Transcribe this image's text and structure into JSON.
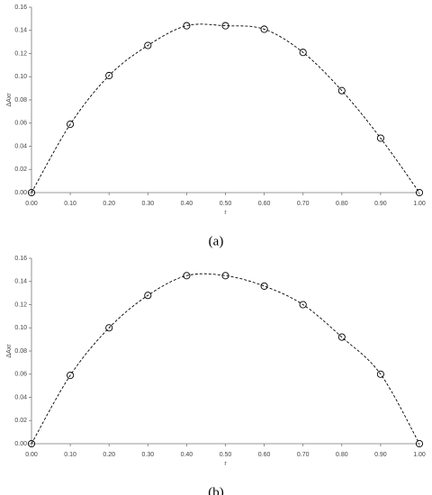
{
  "chart_data": [
    {
      "type": "scatter",
      "caption": "(a)",
      "x_label": "r",
      "y_label": "ΔAxr",
      "color": "#000000",
      "curve": "dashed",
      "x": [
        0,
        0.1,
        0.2,
        0.3,
        0.4,
        0.5,
        0.6,
        0.7,
        0.8,
        0.9,
        1.0
      ],
      "values": [
        0,
        0.059,
        0.101,
        0.127,
        0.144,
        0.144,
        0.141,
        0.121,
        0.088,
        0.047,
        0
      ],
      "xlim": [
        0,
        1
      ],
      "ylim": [
        0,
        0.16
      ],
      "xticks": [
        {
          "value": 0,
          "label": "0.00"
        },
        {
          "value": 0.1,
          "label": "0.10"
        },
        {
          "value": 0.2,
          "label": "0.20"
        },
        {
          "value": 0.3,
          "label": "0.30"
        },
        {
          "value": 0.4,
          "label": "0.40"
        },
        {
          "value": 0.5,
          "label": "0.50"
        },
        {
          "value": 0.6,
          "label": "0.60"
        },
        {
          "value": 0.7,
          "label": "0.70"
        },
        {
          "value": 0.8,
          "label": "0.80"
        },
        {
          "value": 0.9,
          "label": "0.90"
        },
        {
          "value": 1,
          "label": "1.00"
        }
      ],
      "yticks": [
        {
          "value": 0,
          "label": "0.00"
        },
        {
          "value": 0.02,
          "label": "0.02"
        },
        {
          "value": 0.04,
          "label": "0.04"
        },
        {
          "value": 0.06,
          "label": "0.06"
        },
        {
          "value": 0.08,
          "label": "0.08"
        },
        {
          "value": 0.1,
          "label": "0.10"
        },
        {
          "value": 0.12,
          "label": "0.12"
        },
        {
          "value": 0.14,
          "label": "0.14"
        },
        {
          "value": 0.16,
          "label": "0.16"
        }
      ]
    },
    {
      "type": "scatter",
      "caption": "(b)",
      "x_label": "r",
      "y_label": "ΔAxr",
      "color": "#000000",
      "curve": "dashed",
      "x": [
        0,
        0.1,
        0.2,
        0.3,
        0.4,
        0.5,
        0.6,
        0.7,
        0.8,
        0.9,
        1.0
      ],
      "values": [
        0,
        0.059,
        0.1,
        0.128,
        0.145,
        0.145,
        0.136,
        0.12,
        0.092,
        0.06,
        0
      ],
      "xlim": [
        0,
        1
      ],
      "ylim": [
        0,
        0.16
      ],
      "xticks": [
        {
          "value": 0,
          "label": "0.00"
        },
        {
          "value": 0.1,
          "label": "0.10"
        },
        {
          "value": 0.2,
          "label": "0.20"
        },
        {
          "value": 0.3,
          "label": "0.30"
        },
        {
          "value": 0.4,
          "label": "0.40"
        },
        {
          "value": 0.5,
          "label": "0.50"
        },
        {
          "value": 0.6,
          "label": "0.60"
        },
        {
          "value": 0.7,
          "label": "0.70"
        },
        {
          "value": 0.8,
          "label": "0.80"
        },
        {
          "value": 0.9,
          "label": "0.90"
        },
        {
          "value": 1,
          "label": "1.00"
        }
      ],
      "yticks": [
        {
          "value": 0,
          "label": "0.00"
        },
        {
          "value": 0.02,
          "label": "0.02"
        },
        {
          "value": 0.04,
          "label": "0.04"
        },
        {
          "value": 0.06,
          "label": "0.06"
        },
        {
          "value": 0.08,
          "label": "0.08"
        },
        {
          "value": 0.1,
          "label": "0.10"
        },
        {
          "value": 0.12,
          "label": "0.12"
        },
        {
          "value": 0.14,
          "label": "0.14"
        },
        {
          "value": 0.16,
          "label": "0.16"
        }
      ]
    }
  ]
}
